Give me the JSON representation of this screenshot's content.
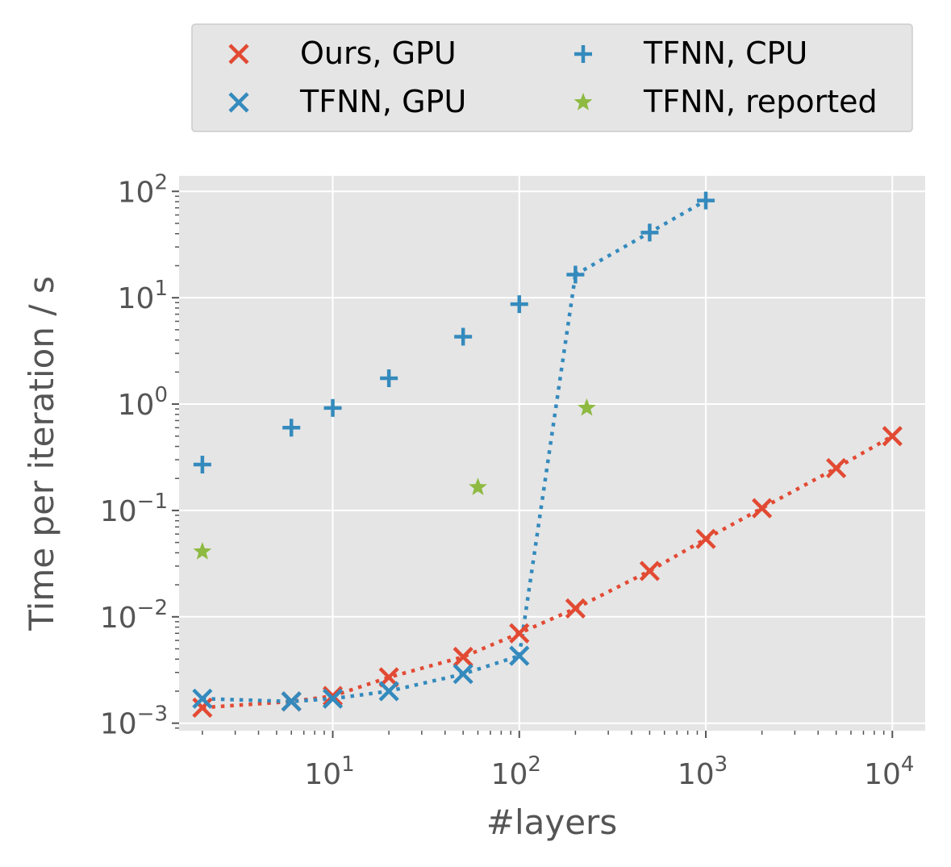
{
  "chart_data": {
    "type": "scatter",
    "title": "",
    "xlabel": "#layers",
    "ylabel": "Time per iteration / s",
    "xscale": "log",
    "yscale": "log",
    "xlim": [
      1.5,
      15000
    ],
    "ylim": [
      0.00085,
      140
    ],
    "grid": true,
    "legend_position": "top (above plot), 2 columns",
    "x_ticks": [
      {
        "value": 10,
        "base": "10",
        "exp": "1"
      },
      {
        "value": 100,
        "base": "10",
        "exp": "2"
      },
      {
        "value": 1000,
        "base": "10",
        "exp": "3"
      },
      {
        "value": 10000,
        "base": "10",
        "exp": "4"
      }
    ],
    "y_ticks": [
      {
        "value": 0.001,
        "base": "10",
        "exp": "−3"
      },
      {
        "value": 0.01,
        "base": "10",
        "exp": "−2"
      },
      {
        "value": 0.1,
        "base": "10",
        "exp": "−1"
      },
      {
        "value": 1,
        "base": "10",
        "exp": "0"
      },
      {
        "value": 10,
        "base": "10",
        "exp": "1"
      },
      {
        "value": 100,
        "base": "10",
        "exp": "2"
      }
    ],
    "series": [
      {
        "name": "Ours, GPU",
        "marker": "x",
        "color": "#E24A33",
        "x": [
          2,
          6,
          10,
          20,
          50,
          100,
          200,
          500,
          1000,
          2000,
          5000,
          10000
        ],
        "y": [
          0.0014,
          0.0016,
          0.0018,
          0.0027,
          0.0042,
          0.007,
          0.012,
          0.027,
          0.054,
          0.105,
          0.25,
          0.5
        ],
        "line_segments": [
          [
            0,
            11
          ]
        ]
      },
      {
        "name": "TFNN, GPU",
        "marker": "x",
        "color": "#348ABD",
        "x": [
          2,
          6,
          10,
          20,
          50,
          100
        ],
        "y": [
          0.0017,
          0.0016,
          0.0017,
          0.002,
          0.0029,
          0.0043
        ],
        "line_segments": [
          [
            0,
            5
          ]
        ]
      },
      {
        "name": "TFNN, CPU",
        "marker": "+",
        "color": "#348ABD",
        "x": [
          2,
          6,
          10,
          20,
          50,
          100,
          200,
          500,
          1000
        ],
        "y": [
          0.27,
          0.6,
          0.92,
          1.75,
          4.3,
          8.7,
          16.5,
          41,
          82
        ],
        "line_segments": [
          [
            6,
            8
          ]
        ]
      },
      {
        "name": "TFNN, reported",
        "marker": "star",
        "color": "#8EBA42",
        "x": [
          2,
          60,
          230
        ],
        "y": [
          0.041,
          0.165,
          0.92
        ],
        "line_segments": []
      }
    ],
    "extra_lines": [
      {
        "color": "#348ABD",
        "points": [
          [
            100,
            0.0043
          ],
          [
            200,
            16.5
          ]
        ]
      }
    ]
  }
}
